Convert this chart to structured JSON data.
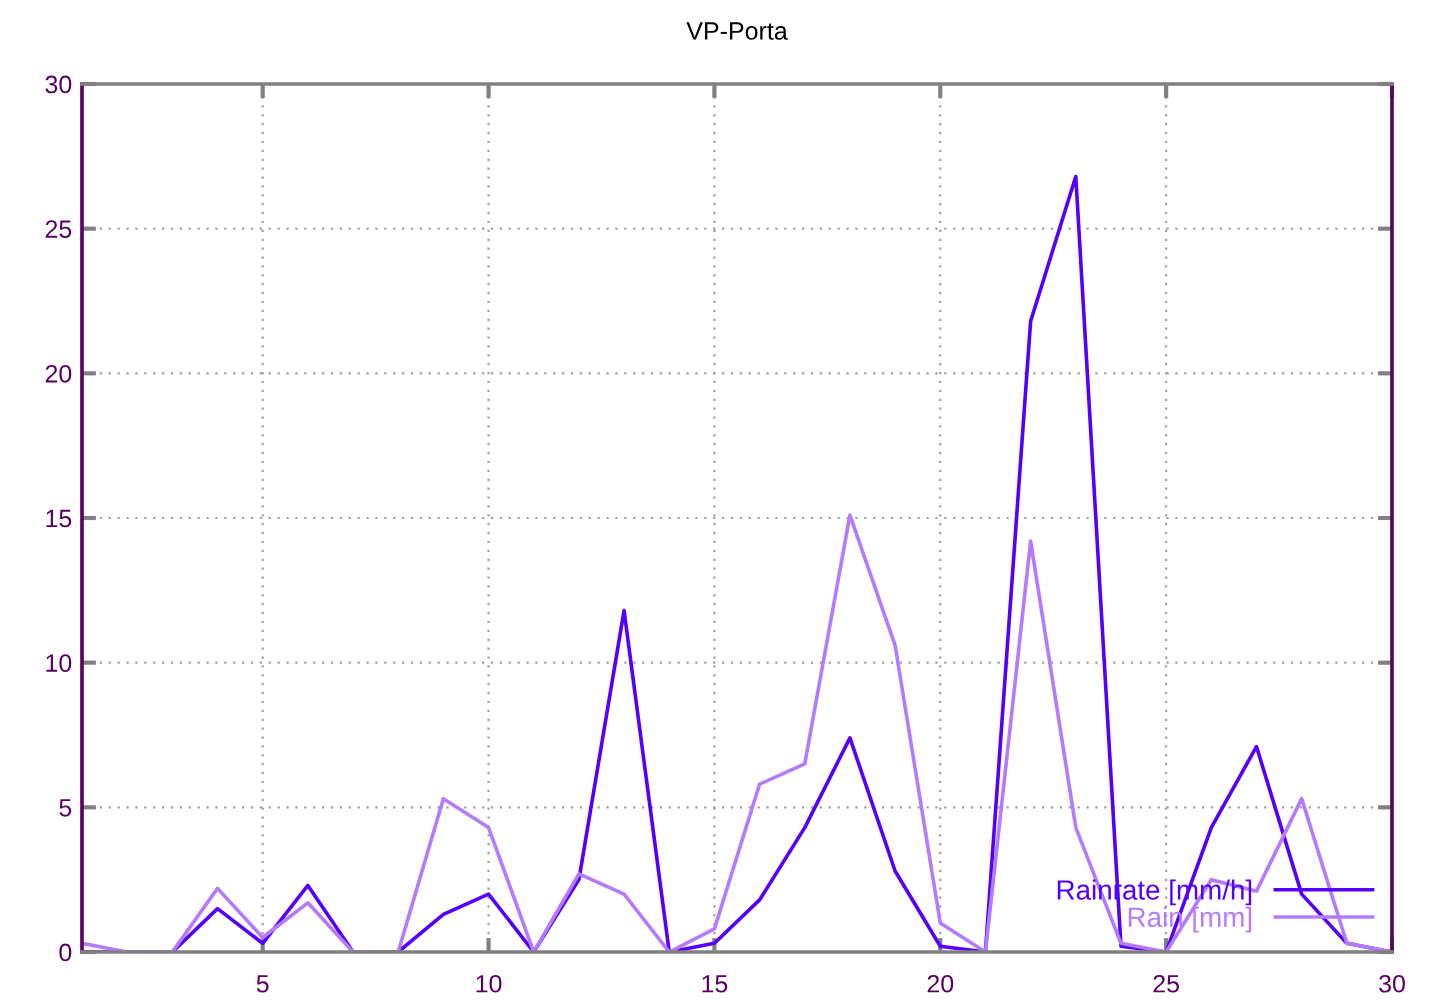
{
  "chart_data": {
    "type": "line",
    "title": "VP-Porta",
    "x": [
      1,
      2,
      3,
      4,
      5,
      6,
      7,
      8,
      9,
      10,
      11,
      12,
      13,
      14,
      15,
      16,
      17,
      18,
      19,
      20,
      21,
      22,
      23,
      24,
      25,
      26,
      27,
      28,
      29,
      30
    ],
    "series": [
      {
        "name": "Rainrate [mm/h]",
        "color": "#5500ff",
        "values": [
          0,
          0,
          0,
          1.5,
          0.3,
          2.3,
          0,
          0,
          1.3,
          2.0,
          0,
          2.5,
          11.8,
          0,
          0.3,
          1.8,
          4.3,
          7.4,
          2.8,
          0.2,
          0,
          21.8,
          26.8,
          0.2,
          0,
          4.3,
          7.1,
          2.0,
          0.3,
          0
        ]
      },
      {
        "name": "Rain [mm]",
        "color": "#b57bff",
        "values": [
          0.3,
          0,
          0,
          2.2,
          0.5,
          1.7,
          0,
          0,
          5.3,
          4.3,
          0,
          2.7,
          2.0,
          0,
          0.8,
          5.8,
          6.5,
          15.1,
          10.6,
          1.0,
          0,
          14.2,
          4.3,
          0.3,
          0,
          2.5,
          2.1,
          5.3,
          0.3,
          0
        ]
      }
    ],
    "xlim": [
      1,
      30
    ],
    "xticks": [
      5,
      10,
      15,
      20,
      25,
      30
    ],
    "ylim": [
      0,
      30
    ],
    "yticks": [
      0,
      5,
      10,
      15,
      20,
      25,
      30
    ],
    "grid": true,
    "legend": "bottom right",
    "line_style": "solid"
  }
}
